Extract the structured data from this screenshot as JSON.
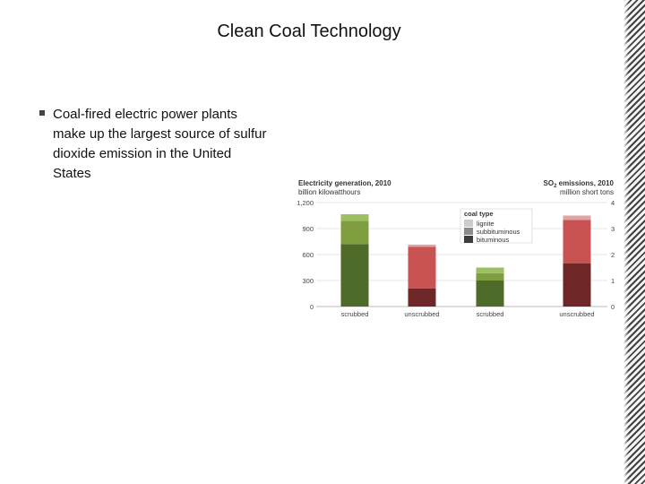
{
  "slide": {
    "title": "Clean Coal Technology",
    "bullet": "Coal-fired electric power plants make up the largest source of sulfur dioxide emission in the United States"
  },
  "colors": {
    "lignite_gen": "#9bbf61",
    "subbit_gen": "#7e9e3f",
    "bit_gen": "#4f6b2a",
    "lignite_so2": "#e1a3a3",
    "subbit_so2": "#c95252",
    "bit_so2": "#6e2626",
    "legend_lignite": "#cccccc",
    "legend_subbit": "#8c8c8c",
    "legend_bit": "#3d3d3d"
  },
  "chart_data": {
    "type": "bar",
    "stacked": true,
    "left_title": "Electricity generation, 2010",
    "left_unit": "billion kilowatthours",
    "right_title_prefix": "SO",
    "right_title_sub": "2",
    "right_title_suffix": " emissions, 2010",
    "right_unit": "million short tons",
    "left_ylim": [
      0,
      1200
    ],
    "left_ticks": [
      "1,200",
      "900",
      "600",
      "300",
      "0"
    ],
    "right_ylim": [
      0,
      4
    ],
    "right_ticks": [
      "4",
      "3",
      "2",
      "1",
      "0"
    ],
    "categories": [
      "scrubbed",
      "unscrubbed",
      "scrubbed",
      "unscrubbed"
    ],
    "legend_title": "coal type",
    "series": [
      {
        "name": "bituminous",
        "values": [
          720,
          210,
          300,
          500
        ]
      },
      {
        "name": "subbituminous",
        "values": [
          270,
          480,
          85,
          500
        ]
      },
      {
        "name": "lignite",
        "values": [
          75,
          25,
          65,
          50
        ]
      }
    ],
    "bar_axis": [
      "left",
      "left",
      "left",
      "left"
    ],
    "bar_metric": [
      "generation",
      "so2",
      "generation",
      "so2"
    ],
    "grid": true,
    "legend_position": "top-center"
  }
}
